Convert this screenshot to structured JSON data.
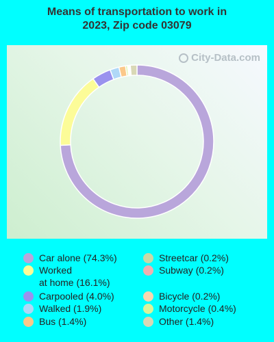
{
  "title_line1": "Means of transportation to work in",
  "title_line2": "2023, Zip code 03079",
  "watermark": "City-Data.com",
  "chart_data": {
    "type": "pie",
    "title": "Means of transportation to work in 2023, Zip code 03079",
    "series": [
      {
        "name": "Car alone",
        "value": 74.3,
        "label": "Car alone (74.3%)",
        "color": "#b9a6db"
      },
      {
        "name": "Worked at home",
        "value": 16.1,
        "label_line1": "Worked",
        "label_line2": "at home (16.1%)",
        "color": "#fcfc98"
      },
      {
        "name": "Carpooled",
        "value": 4.0,
        "label": "Carpooled (4.0%)",
        "color": "#9a92ee"
      },
      {
        "name": "Walked",
        "value": 1.9,
        "label": "Walked (1.9%)",
        "color": "#afd8f7"
      },
      {
        "name": "Bus",
        "value": 1.4,
        "label": "Bus (1.4%)",
        "color": "#fbc88a"
      },
      {
        "name": "Streetcar",
        "value": 0.2,
        "label": "Streetcar (0.2%)",
        "color": "#c7d9a7"
      },
      {
        "name": "Subway",
        "value": 0.2,
        "label": "Subway (0.2%)",
        "color": "#f0b0b0"
      },
      {
        "name": "Bicycle",
        "value": 0.2,
        "label": "Bicycle (0.2%)",
        "color": "#f9d7b0"
      },
      {
        "name": "Motorcycle",
        "value": 0.4,
        "label": "Motorcycle (0.4%)",
        "color": "#daf39b"
      },
      {
        "name": "Other",
        "value": 1.4,
        "label": "Other (1.4%)",
        "color": "#d9d8b6"
      }
    ],
    "draw_order": [
      "Car alone",
      "Worked at home",
      "Carpooled",
      "Walked",
      "Bus",
      "Motorcycle",
      "Bicycle",
      "Subway",
      "Streetcar",
      "Other"
    ]
  }
}
